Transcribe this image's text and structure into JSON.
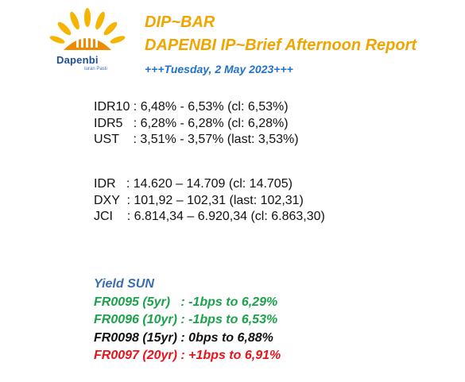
{
  "logo": {
    "name": "Dapenbi",
    "tagline": "Iuran Pasti"
  },
  "header": {
    "title": "DIP~BAR",
    "subtitle": "DAPENBI IP~Brief Afternoon Report",
    "date": "+++Tuesday, 2 May 2023+++"
  },
  "yields": [
    "IDR10 : 6,48% - 6,53% (cl: 6,53%)",
    "IDR5   : 6,28% - 6,28% (cl: 6,28%)",
    "UST    : 3,51% - 3,57% (last: 3,53%)"
  ],
  "markets": [
    "IDR   : 14.620 – 14.709 (cl: 14.705)",
    "DXY  : 101,92 – 102,31 (last: 102,31)",
    "JCI    : 6.814,34 – 6.920,34 (cl: 6.863,30)"
  ],
  "yield_sun": {
    "heading": "Yield SUN",
    "items": [
      {
        "text": "FR0095 (5yr)   : -1bps to 6,29%",
        "color": "#1aa34a"
      },
      {
        "text": "FR0096 (10yr) : -1bps to 6,53%",
        "color": "#1aa34a"
      },
      {
        "text": "FR0098 (15yr) : 0bps to 6,88%",
        "color": "#111111"
      },
      {
        "text": "FR0097 (20yr) : +1bps to 6,91%",
        "color": "#e8141b"
      }
    ],
    "heading_color": "#3a6db5"
  },
  "colors": {
    "accent": "#f0a500",
    "date": "#2172c9"
  }
}
